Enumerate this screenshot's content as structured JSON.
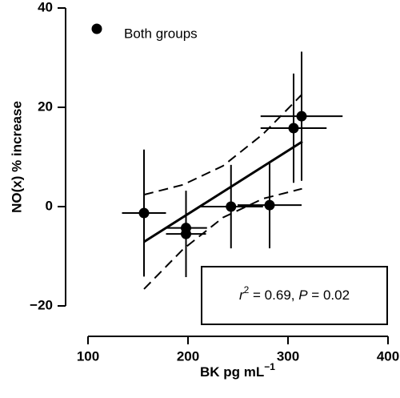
{
  "chart_data": {
    "type": "scatter",
    "ylabel": "NO(x) % increase",
    "xlabel": [
      "BK pg mL",
      "−1"
    ],
    "xlim": [
      100,
      400
    ],
    "ylim": [
      -20,
      40
    ],
    "xticks": [
      100,
      200,
      300,
      400
    ],
    "yticks": [
      {
        "value": -20,
        "label": "−20"
      },
      0,
      20,
      40
    ],
    "series": [
      {
        "name": "Both groups",
        "color": "#000000",
        "x": [
          156,
          198,
          198,
          243,
          281.6,
          305.6,
          313.6
        ],
        "values": [
          -1.3,
          -4.3,
          -5.5,
          0,
          0.3,
          15.8,
          18.2
        ],
        "xerr": [
          22,
          21,
          20,
          32,
          32,
          33,
          41
        ],
        "yerr": [
          12.8,
          7.3,
          8.7,
          8.4,
          8.7,
          11,
          13
        ]
      }
    ],
    "fit": {
      "x": [
        156,
        314.4
      ],
      "values": [
        -7.1,
        13.1
      ]
    },
    "confidence_upper": {
      "x": [
        156,
        195,
        235,
        275,
        314
      ],
      "values": [
        2.4,
        4.4,
        8.2,
        14.6,
        22.6
      ]
    },
    "confidence_lower": {
      "x": [
        156,
        195,
        235,
        275,
        314
      ],
      "values": [
        -16.6,
        -8.6,
        -2.2,
        1.6,
        3.6
      ]
    },
    "annotation": [
      "r",
      "2",
      " = 0.69, ",
      "P",
      " = 0.02"
    ]
  }
}
